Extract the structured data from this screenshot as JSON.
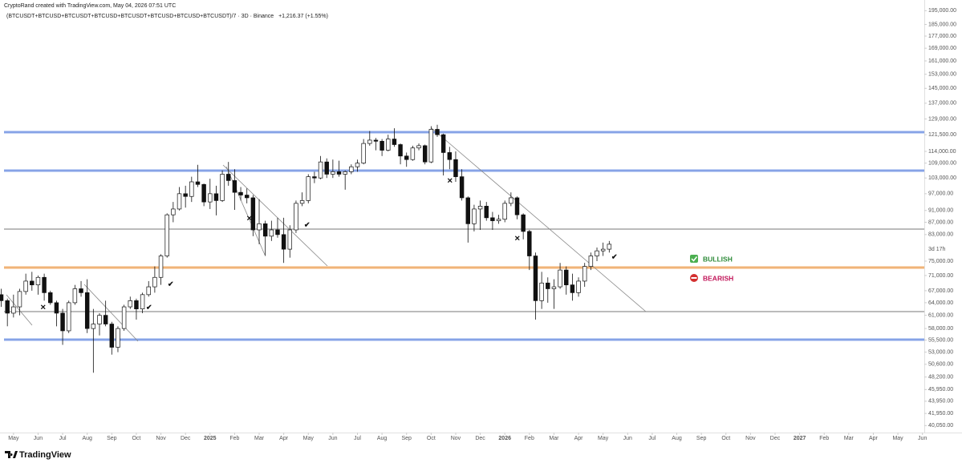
{
  "chart_data": {
    "type": "candlestick",
    "title": "CryptoRand created with TradingView.com, May 04, 2026 07:51 UTC",
    "subtitle": "(BTCUSDT+BTCUSD+BTCUSDT+BTCUSD+BTCUSDT+BTCUSD+BTCUSD+BTCUSDT)/7 · 3D · Binance",
    "change": "+1,216.37 (+1.55%)",
    "countdown": "3d 17h",
    "legend": [
      {
        "name": "BULLISH",
        "color": "#2e8b3a"
      },
      {
        "name": "BEARISH",
        "color": "#c2185b"
      }
    ],
    "brand": "TradingView",
    "log_scale": true,
    "up_color": "#ffffff",
    "down_color": "#111111",
    "outline_color": "#111111",
    "xlim": [
      -0.2,
      150.3
    ],
    "xticks": [
      {
        "value": 2,
        "label": "May"
      },
      {
        "value": 6,
        "label": "Jun"
      },
      {
        "value": 10,
        "label": "Jul"
      },
      {
        "value": 14,
        "label": "Aug"
      },
      {
        "value": 18,
        "label": "Sep"
      },
      {
        "value": 22,
        "label": "Oct"
      },
      {
        "value": 26,
        "label": "Nov"
      },
      {
        "value": 30,
        "label": "Dec"
      },
      {
        "value": 34,
        "label": "2025"
      },
      {
        "value": 38,
        "label": "Feb"
      },
      {
        "value": 42,
        "label": "Mar"
      },
      {
        "value": 46,
        "label": "Apr"
      },
      {
        "value": 50,
        "label": "May"
      },
      {
        "value": 54,
        "label": "Jun"
      },
      {
        "value": 58,
        "label": "Jul"
      },
      {
        "value": 62,
        "label": "Aug"
      },
      {
        "value": 66,
        "label": "Sep"
      },
      {
        "value": 70,
        "label": "Oct"
      },
      {
        "value": 74,
        "label": "Nov"
      },
      {
        "value": 78,
        "label": "Dec"
      },
      {
        "value": 82,
        "label": "2026"
      },
      {
        "value": 86,
        "label": "Feb"
      },
      {
        "value": 90,
        "label": "Mar"
      },
      {
        "value": 94,
        "label": "Apr"
      },
      {
        "value": 98,
        "label": "May"
      },
      {
        "value": 102,
        "label": "Jun"
      },
      {
        "value": 106,
        "label": "Jul"
      },
      {
        "value": 110,
        "label": "Aug"
      },
      {
        "value": 114,
        "label": "Sep"
      },
      {
        "value": 118,
        "label": "Oct"
      },
      {
        "value": 122,
        "label": "Nov"
      },
      {
        "value": 126,
        "label": "Dec"
      },
      {
        "value": 130,
        "label": "2027"
      },
      {
        "value": 134,
        "label": "Feb"
      },
      {
        "value": 138,
        "label": "Mar"
      },
      {
        "value": 142,
        "label": "Apr"
      },
      {
        "value": 146,
        "label": "May"
      },
      {
        "value": 150,
        "label": "Jun"
      }
    ],
    "ylim": [
      39600,
      197000
    ],
    "yticks": [
      {
        "value": 195000,
        "label": "195,000.00"
      },
      {
        "value": 185000,
        "label": "185,000.00"
      },
      {
        "value": 177000,
        "label": "177,000.00"
      },
      {
        "value": 169000,
        "label": "169,000.00"
      },
      {
        "value": 161000,
        "label": "161,000.00"
      },
      {
        "value": 153000,
        "label": "153,000.00"
      },
      {
        "value": 145000,
        "label": "145,000.00"
      },
      {
        "value": 137000,
        "label": "137,000.00"
      },
      {
        "value": 129000,
        "label": "129,000.00"
      },
      {
        "value": 121500,
        "label": "121,500.00"
      },
      {
        "value": 114000,
        "label": "114,000.00"
      },
      {
        "value": 109000,
        "label": "109,000.00"
      },
      {
        "value": 103000,
        "label": "103,000.00"
      },
      {
        "value": 97000,
        "label": "97,000.00"
      },
      {
        "value": 91000,
        "label": "91,000.00"
      },
      {
        "value": 87000,
        "label": "87,000.00"
      },
      {
        "value": 83000,
        "label": "83,000.00"
      },
      {
        "value": 75000,
        "label": "75,000.00"
      },
      {
        "value": 71000,
        "label": "71,000.00"
      },
      {
        "value": 67000,
        "label": "67,000.00"
      },
      {
        "value": 64000,
        "label": "64,000.00"
      },
      {
        "value": 61000,
        "label": "61,000.00"
      },
      {
        "value": 58000,
        "label": "58,000.00"
      },
      {
        "value": 55500,
        "label": "55,500.00"
      },
      {
        "value": 53000,
        "label": "53,000.00"
      },
      {
        "value": 50600,
        "label": "50,600.00"
      },
      {
        "value": 48200,
        "label": "48,200.00"
      },
      {
        "value": 45950,
        "label": "45,950.00"
      },
      {
        "value": 43950,
        "label": "43,950.00"
      },
      {
        "value": 41950,
        "label": "41,950.00"
      },
      {
        "value": 40050,
        "label": "40,050.00"
      }
    ],
    "open": [
      66000,
      64500,
      61500,
      63000,
      66800,
      69500,
      68500,
      70500,
      66500,
      64000,
      61500,
      57500,
      64000,
      67500,
      66500,
      58000,
      59000,
      61000,
      59000,
      54000,
      58000,
      63000,
      64500,
      62500,
      66000,
      68000,
      70500,
      76500,
      89500,
      91500,
      97000,
      96000,
      101500,
      100500,
      94000,
      97000,
      94500,
      104500,
      102000,
      97500,
      96500,
      95500,
      84500,
      86500,
      82500,
      84500,
      83000,
      78500,
      84500,
      93500,
      94500,
      103500,
      103000,
      109500,
      104500,
      105500,
      104500,
      105500,
      107500,
      109000,
      117500,
      119000,
      118500,
      114500,
      119500,
      117000,
      112000,
      110500,
      115500,
      116500,
      109500,
      124000,
      121500,
      113500,
      110500,
      103500,
      95500,
      86500,
      91500,
      92500,
      88500,
      87500,
      88000,
      93500,
      95500,
      89500,
      84000,
      76500,
      64500,
      69000,
      67500,
      68000,
      72500,
      68500,
      66500,
      69500,
      73500,
      76500,
      78000,
      78500
    ],
    "high": [
      67500,
      65000,
      66000,
      67500,
      71500,
      72000,
      71000,
      71500,
      67000,
      64500,
      62500,
      64500,
      68500,
      69500,
      70000,
      62500,
      61500,
      64500,
      59500,
      58500,
      63500,
      65500,
      65000,
      66500,
      69500,
      73500,
      77000,
      90000,
      94000,
      99500,
      100000,
      103500,
      108300,
      100800,
      102700,
      100000,
      106000,
      109500,
      106500,
      99500,
      99000,
      96500,
      95000,
      87500,
      87500,
      88500,
      88500,
      86000,
      94500,
      97500,
      104500,
      105500,
      112000,
      111000,
      110500,
      110000,
      106000,
      108500,
      110500,
      119500,
      123200,
      120000,
      119500,
      121500,
      124500,
      117500,
      113500,
      116500,
      117500,
      117000,
      125500,
      126200,
      122000,
      116000,
      114000,
      106500,
      96000,
      93000,
      94500,
      94000,
      90500,
      89500,
      94500,
      97500,
      96000,
      90000,
      84500,
      77500,
      72000,
      70500,
      70000,
      74500,
      73500,
      71500,
      70500,
      74500,
      77500,
      79000,
      80500,
      81000
    ],
    "low": [
      63000,
      58500,
      60500,
      61000,
      66000,
      67000,
      66000,
      64500,
      63500,
      58500,
      54500,
      57000,
      63500,
      65500,
      57000,
      49000,
      56500,
      58500,
      52500,
      53000,
      57500,
      62500,
      60000,
      61500,
      65500,
      66500,
      68500,
      76000,
      87000,
      91000,
      92000,
      94000,
      99500,
      92500,
      91500,
      89300,
      94000,
      100000,
      91200,
      94500,
      93500,
      82500,
      80000,
      76500,
      81000,
      82000,
      74500,
      76000,
      83500,
      92500,
      93500,
      101000,
      102500,
      103000,
      103000,
      103500,
      98500,
      104500,
      105500,
      108500,
      116500,
      114500,
      112000,
      114000,
      116000,
      108500,
      107500,
      110000,
      114500,
      108500,
      109000,
      120500,
      104000,
      106500,
      101500,
      94500,
      80500,
      84000,
      84500,
      87500,
      84500,
      86500,
      87000,
      92500,
      88000,
      81500,
      72500,
      60000,
      62500,
      64000,
      62500,
      67500,
      66000,
      64500,
      65500,
      68000,
      72500,
      75000,
      76500,
      77500
    ],
    "close": [
      64500,
      61500,
      63000,
      66800,
      69500,
      68500,
      70500,
      66500,
      64000,
      61500,
      57500,
      64000,
      67500,
      66500,
      58000,
      59000,
      61000,
      59000,
      54000,
      58000,
      63000,
      64500,
      62500,
      66000,
      68000,
      70500,
      76500,
      89500,
      91500,
      97000,
      96000,
      101500,
      100500,
      94000,
      97000,
      94500,
      104500,
      102000,
      97500,
      96500,
      95500,
      84500,
      86500,
      82500,
      84500,
      83000,
      78500,
      84500,
      93500,
      94500,
      103500,
      103000,
      109500,
      104500,
      105500,
      104500,
      105500,
      107500,
      109000,
      117500,
      119000,
      118500,
      114500,
      119500,
      117000,
      112000,
      110500,
      115500,
      116500,
      109500,
      124000,
      121500,
      113500,
      110500,
      103500,
      95500,
      86500,
      91500,
      92500,
      88500,
      87500,
      88000,
      93500,
      95500,
      89500,
      84000,
      76500,
      64500,
      69000,
      67500,
      68000,
      72500,
      68500,
      66500,
      69500,
      73500,
      76500,
      78000,
      78500,
      80000
    ]
  }
}
